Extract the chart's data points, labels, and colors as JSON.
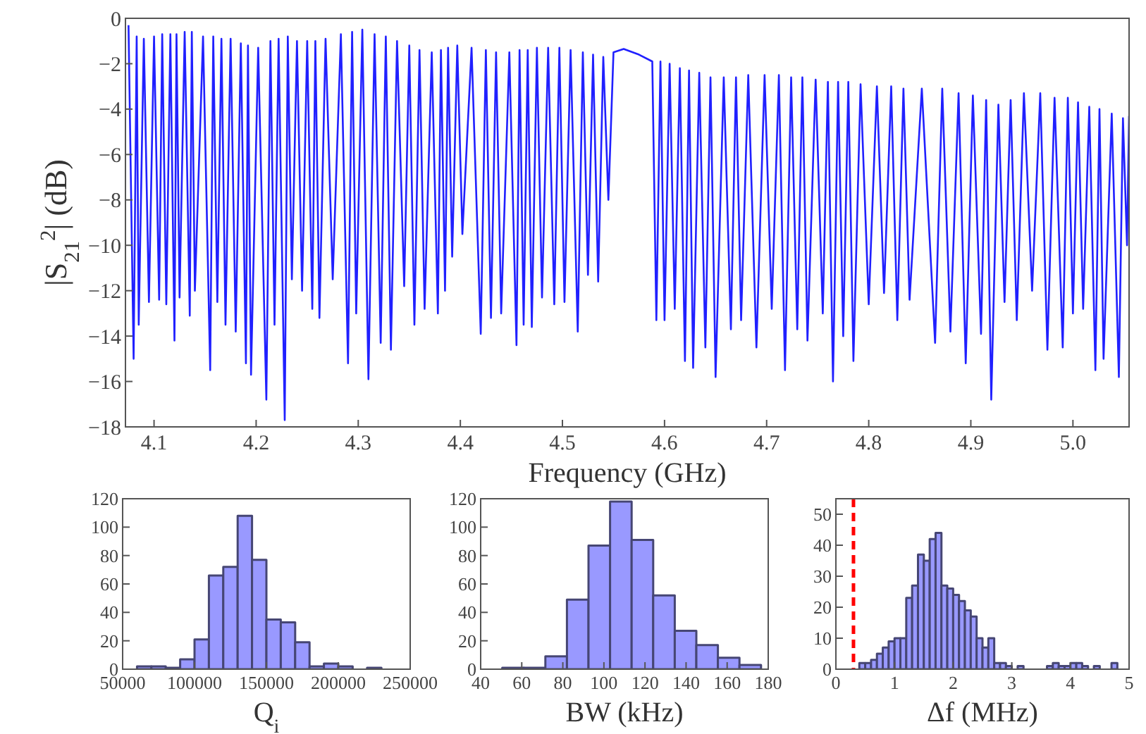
{
  "chart_data": [
    {
      "type": "line",
      "xlabel": "Frequency (GHz)",
      "ylabel": "|S$_{21}$$^{2}$| (dB)",
      "xlim": [
        4.072,
        5.055
      ],
      "ylim": [
        -18,
        0
      ],
      "xticks": [
        4.1,
        4.2,
        4.3,
        4.4,
        4.5,
        4.6,
        4.7,
        4.8,
        4.9,
        {
          "value": 5,
          "label": "5.0"
        }
      ],
      "yticks": [
        {
          "value": -18,
          "label": "−18"
        },
        {
          "value": -16,
          "label": "−16"
        },
        {
          "value": -14,
          "label": "−14"
        },
        {
          "value": -12,
          "label": "−12"
        },
        {
          "value": -10,
          "label": "−10"
        },
        {
          "value": -8,
          "label": "−8"
        },
        {
          "value": -6,
          "label": "−6"
        },
        {
          "value": -4,
          "label": "−4"
        },
        {
          "value": -2,
          "label": "−2"
        },
        0
      ],
      "series": [
        {
          "color": "#2020ff",
          "x": [
            4.075,
            4.08,
            4.083,
            4.085,
            4.09,
            4.095,
            4.1,
            4.105,
            4.108,
            4.112,
            4.116,
            4.12,
            4.122,
            4.125,
            4.13,
            4.135,
            4.137,
            4.14,
            4.148,
            4.155,
            4.158,
            4.162,
            4.166,
            4.17,
            4.175,
            4.18,
            4.185,
            4.19,
            4.192,
            4.195,
            4.202,
            4.21,
            4.214,
            4.218,
            4.222,
            4.228,
            4.231,
            4.235,
            4.24,
            4.245,
            4.25,
            4.255,
            4.258,
            4.262,
            4.268,
            4.275,
            4.283,
            4.29,
            4.294,
            4.298,
            4.304,
            4.31,
            4.316,
            4.322,
            4.327,
            4.332,
            4.338,
            4.345,
            4.35,
            4.355,
            4.36,
            4.365,
            4.372,
            4.378,
            4.381,
            4.385,
            4.388,
            4.392,
            4.397,
            4.402,
            4.411,
            4.42,
            4.425,
            4.43,
            4.435,
            4.44,
            4.448,
            4.455,
            4.458,
            4.462,
            4.466,
            4.47,
            4.475,
            4.48,
            4.486,
            4.492,
            4.497,
            4.502,
            4.508,
            4.515,
            4.52,
            4.525,
            4.53,
            4.535,
            4.54,
            4.545,
            4.55,
            4.56,
            4.575,
            4.588,
            4.592,
            4.596,
            4.6,
            4.605,
            4.61,
            4.615,
            4.62,
            4.624,
            4.628,
            4.634,
            4.64,
            4.645,
            4.65,
            4.658,
            4.665,
            4.67,
            4.675,
            4.682,
            4.69,
            4.698,
            4.705,
            4.712,
            4.718,
            4.724,
            4.73,
            4.735,
            4.74,
            4.748,
            4.755,
            4.76,
            4.765,
            4.77,
            4.775,
            4.78,
            4.785,
            4.792,
            4.8,
            4.808,
            4.815,
            4.822,
            4.828,
            4.834,
            4.84,
            4.852,
            4.865,
            4.872,
            4.88,
            4.888,
            4.895,
            4.902,
            4.91,
            4.915,
            4.92,
            4.927,
            4.933,
            4.939,
            4.945,
            4.952,
            4.96,
            4.968,
            4.975,
            4.982,
            4.99,
            4.995,
            5.0,
            5.005,
            5.01,
            5.016,
            5.022,
            5.026,
            5.03,
            5.038,
            5.045,
            5.049,
            5.053,
            5.055
          ],
          "values": [
            -0.3,
            -15.0,
            -0.8,
            -13.5,
            -0.9,
            -12.5,
            -0.8,
            -12.4,
            -0.7,
            -12.6,
            -0.7,
            -14.2,
            -0.7,
            -12.3,
            -0.6,
            -13.1,
            -0.6,
            -12.0,
            -0.8,
            -15.5,
            -0.8,
            -12.5,
            -0.9,
            -13.5,
            -0.9,
            -13.8,
            -1.1,
            -15.2,
            -1.2,
            -15.7,
            -1.3,
            -16.8,
            -1.0,
            -13.5,
            -0.9,
            -17.7,
            -0.8,
            -11.5,
            -1.0,
            -12.0,
            -1.0,
            -12.8,
            -1.0,
            -13.2,
            -0.9,
            -11.5,
            -0.7,
            -15.2,
            -0.6,
            -13.0,
            -0.5,
            -15.9,
            -0.7,
            -14.3,
            -0.8,
            -14.6,
            -1.0,
            -11.8,
            -1.2,
            -13.5,
            -1.4,
            -12.8,
            -1.5,
            -13.0,
            -1.4,
            -12.0,
            -1.3,
            -10.5,
            -1.2,
            -9.5,
            -1.3,
            -13.9,
            -1.4,
            -13.2,
            -1.5,
            -13.0,
            -1.5,
            -14.4,
            -1.4,
            -13.5,
            -1.4,
            -13.6,
            -1.3,
            -12.3,
            -1.3,
            -12.6,
            -1.3,
            -12.5,
            -1.4,
            -13.8,
            -1.5,
            -11.3,
            -1.6,
            -11.6,
            -1.7,
            -8.0,
            -1.5,
            -1.35,
            -1.6,
            -1.9,
            -13.3,
            -1.9,
            -13.3,
            -2.0,
            -12.8,
            -2.2,
            -15.1,
            -2.3,
            -15.4,
            -2.4,
            -14.5,
            -2.6,
            -15.8,
            -2.6,
            -13.7,
            -2.6,
            -13.3,
            -2.5,
            -14.5,
            -2.5,
            -12.8,
            -2.5,
            -15.5,
            -2.6,
            -13.7,
            -2.6,
            -14.2,
            -2.7,
            -13.0,
            -2.8,
            -16.0,
            -2.8,
            -14.0,
            -2.8,
            -15.1,
            -2.9,
            -12.6,
            -3.0,
            -12.1,
            -3.0,
            -13.3,
            -3.1,
            -12.4,
            -3.1,
            -14.3,
            -3.1,
            -13.8,
            -3.3,
            -15.2,
            -3.4,
            -13.9,
            -3.6,
            -16.8,
            -3.8,
            -12.5,
            -3.6,
            -13.3,
            -3.3,
            -12.0,
            -3.3,
            -14.6,
            -3.5,
            -14.5,
            -3.5,
            -13.0,
            -3.7,
            -12.8,
            -3.9,
            -15.5,
            -4.0,
            -15.0,
            -4.2,
            -15.8,
            -4.4,
            -10.0,
            -4.3
          ]
        }
      ]
    },
    {
      "type": "histogram",
      "xlabel": "Q$_{i}$",
      "xlim": [
        50000,
        250000
      ],
      "ylim": [
        0,
        120
      ],
      "xticks": [
        50000,
        100000,
        150000,
        200000,
        250000
      ],
      "yticks": [
        0,
        20,
        40,
        60,
        80,
        100,
        120
      ],
      "color": "#9999ff",
      "bins": [
        60000,
        70000,
        80000,
        90000,
        100000,
        110000,
        120000,
        130000,
        140000,
        150000,
        160000,
        170000,
        180000,
        190000,
        200000,
        210000,
        220000,
        230000
      ],
      "values": [
        2,
        2,
        1,
        7,
        21,
        66,
        72,
        108,
        77,
        35,
        33,
        19,
        2,
        4,
        2,
        0,
        1
      ]
    },
    {
      "type": "histogram",
      "xlabel": "BW (kHz)",
      "xlim": [
        40,
        180
      ],
      "ylim": [
        0,
        120
      ],
      "xticks": [
        40,
        60,
        80,
        100,
        120,
        140,
        160,
        180
      ],
      "yticks": [
        0,
        20,
        40,
        60,
        80,
        100,
        120
      ],
      "color": "#9999ff",
      "bins": [
        50.5,
        61,
        71.5,
        82,
        92.5,
        103,
        113.5,
        124,
        134.5,
        145,
        155.5,
        166,
        176.5
      ],
      "values": [
        1,
        1,
        9,
        49,
        87,
        118,
        91,
        52,
        27,
        17,
        8,
        3
      ]
    },
    {
      "type": "histogram",
      "xlabel": "Δf (MHz)",
      "xlim": [
        0,
        5
      ],
      "ylim": [
        0,
        55
      ],
      "xticks": [
        0,
        1,
        2,
        3,
        4,
        5
      ],
      "yticks": [
        0,
        10,
        20,
        30,
        40,
        50
      ],
      "color": "#9999ff",
      "bins": [
        0.4,
        0.5,
        0.6,
        0.7,
        0.8,
        0.9,
        1.0,
        1.1,
        1.2,
        1.3,
        1.4,
        1.5,
        1.6,
        1.7,
        1.8,
        1.9,
        2.0,
        2.1,
        2.2,
        2.3,
        2.4,
        2.5,
        2.6,
        2.7,
        2.8,
        2.9,
        3.0,
        3.1,
        3.2,
        3.3,
        3.4,
        3.5,
        3.6,
        3.7,
        3.8,
        3.9,
        4.0,
        4.1,
        4.2,
        4.3,
        4.4,
        4.5,
        4.6,
        4.7,
        4.8,
        4.9
      ],
      "values": [
        2,
        2,
        3,
        5,
        7,
        9,
        10,
        10,
        23,
        27,
        37,
        35,
        42,
        44,
        27,
        26,
        24,
        22,
        19,
        17,
        10,
        7,
        10,
        2,
        2,
        1,
        0,
        1,
        0,
        0,
        0,
        0,
        1,
        2,
        1,
        1,
        2,
        2,
        1,
        0,
        1,
        0,
        0,
        2,
        0
      ],
      "ref_lines": [
        {
          "axis": "x",
          "value": 0.3,
          "color": "#ff0000",
          "line_style": "dashed"
        }
      ]
    }
  ]
}
